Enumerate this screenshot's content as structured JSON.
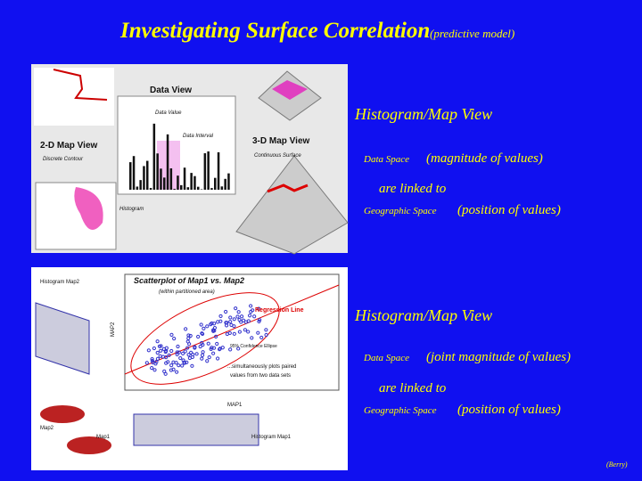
{
  "header": {
    "title": "Investigating Surface Correlation",
    "subtitle": "(predictive model)"
  },
  "sections": [
    {
      "heading": "Histogram/Map View",
      "line1_term": "Data Space",
      "line1_text": "(magnitude of values)",
      "linked": "are linked to",
      "line2_term": "Geographic Space",
      "line2_text": "(position of values)",
      "figure": {
        "data_view": "Data View",
        "data_value": "Data Value",
        "data_interval": "Data Interval",
        "map2d": "2-D Map View",
        "map2d_sub": "Discrete Contour",
        "map3d": "3-D Map View",
        "map3d_sub": "Continuous Surface",
        "histogram": "Histogram"
      }
    },
    {
      "heading": "Histogram/Map View",
      "line1_term": "Data Space",
      "line1_text": "(joint magnitude of values)",
      "linked": "are linked to",
      "line2_term": "Geographic Space",
      "line2_text": "(position of values)",
      "figure": {
        "hist_map2": "Histogram Map2",
        "scatter_title": "Scatterplot of Map1 vs. Map2",
        "scatter_sub": "(within partitioned area)",
        "regression": "Regression Line",
        "ellipse": "95% Confidence Ellipse",
        "note1": "...simultaneously plots paired",
        "note2": "values from two data sets",
        "hist_map1": "Histogram Map1",
        "x_axis": "MAP1",
        "y_axis": "MAP2",
        "map2": "Map2",
        "map1": "Map1"
      }
    }
  ],
  "footer": {
    "credit": "(Berry)"
  }
}
